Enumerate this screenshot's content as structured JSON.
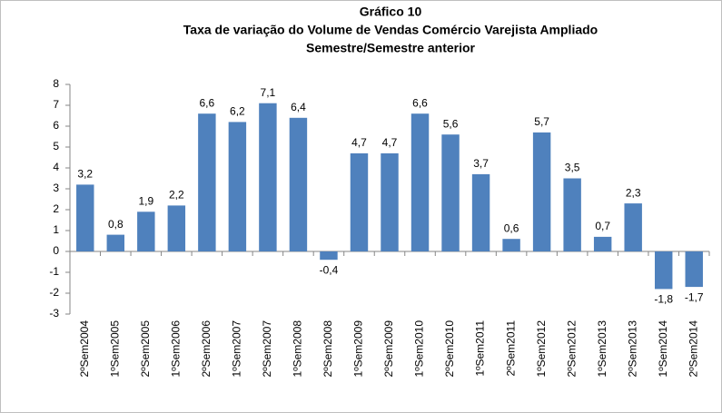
{
  "chart_data": {
    "type": "bar",
    "title": "Gráfico 10",
    "subtitle": [
      "Taxa de variação do Volume de Vendas Comércio Varejista Ampliado",
      "Semestre/Semestre anterior"
    ],
    "categories": [
      "2ºSem2004",
      "1ºSem2005",
      "2ºSem2005",
      "1ºSem2006",
      "2ºSem2006",
      "1ºSem2007",
      "2ºSem2007",
      "1ºSem2008",
      "2ºSem2008",
      "1ºSem2009",
      "2ºSem2009",
      "1ºSem2010",
      "2ºSem2010",
      "1ºSem2011",
      "2ºSem2011",
      "1ºSem2012",
      "2ºSem2012",
      "1ºSem2013",
      "2ºSem2013",
      "1ºSem2014",
      "2ºSem2014"
    ],
    "values": [
      3.2,
      0.8,
      1.9,
      2.2,
      6.6,
      6.2,
      7.1,
      6.4,
      -0.4,
      4.7,
      4.7,
      6.6,
      5.6,
      3.7,
      0.6,
      5.7,
      3.5,
      0.7,
      2.3,
      -1.8,
      -1.7
    ],
    "value_labels": [
      "3,2",
      "0,8",
      "1,9",
      "2,2",
      "6,6",
      "6,2",
      "7,1",
      "6,4",
      "-0,4",
      "4,7",
      "4,7",
      "6,6",
      "5,6",
      "3,7",
      "0,6",
      "5,7",
      "3,5",
      "0,7",
      "2,3",
      "-1,8",
      "-1,7"
    ],
    "color": "#4f81bd",
    "ylim": [
      -3,
      8
    ],
    "yticks": [
      -3,
      -2,
      -1,
      0,
      1,
      2,
      3,
      4,
      5,
      6,
      7,
      8
    ],
    "grid": false
  }
}
